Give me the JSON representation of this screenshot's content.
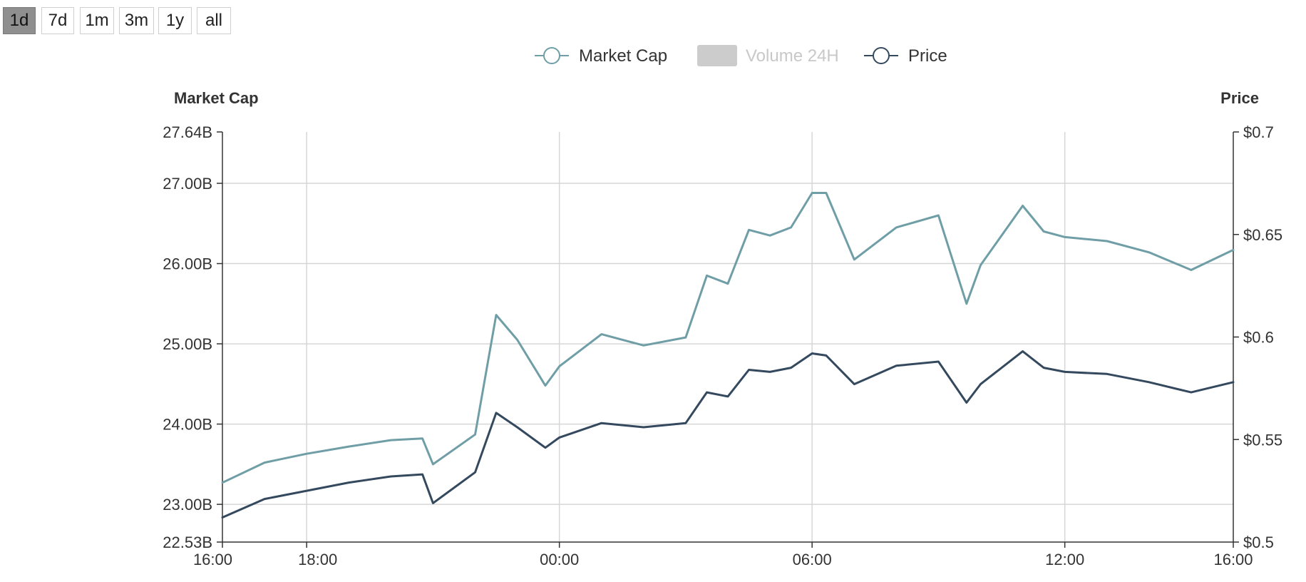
{
  "range_buttons": {
    "active": "1d",
    "labels": [
      "1d",
      "7d",
      "1m",
      "3m",
      "1y",
      "all"
    ]
  },
  "colors": {
    "market_cap": "#6f9ea6",
    "price": "#34495e",
    "volume_disabled": "#cccccc",
    "grid": "#d6d6d6",
    "axis": "#333333"
  },
  "chart_data": {
    "type": "line",
    "legend": {
      "placement": "top-center",
      "entries": [
        {
          "name": "Market Cap",
          "enabled": true
        },
        {
          "name": "Volume 24H",
          "enabled": false
        },
        {
          "name": "Price",
          "enabled": true
        }
      ]
    },
    "y_left": {
      "title": "Market Cap",
      "range": [
        22.53,
        27.64
      ],
      "ticks": [
        {
          "value": 27.64,
          "label": "27.64B"
        },
        {
          "value": 27.0,
          "label": "27.00B"
        },
        {
          "value": 26.0,
          "label": "26.00B"
        },
        {
          "value": 25.0,
          "label": "25.00B"
        },
        {
          "value": 24.0,
          "label": "24.00B"
        },
        {
          "value": 23.0,
          "label": "23.00B"
        },
        {
          "value": 22.53,
          "label": "22.53B"
        }
      ]
    },
    "y_right": {
      "title": "Price",
      "range": [
        0.5,
        0.7
      ],
      "ticks": [
        {
          "value": 0.7,
          "label": "$0.7"
        },
        {
          "value": 0.65,
          "label": "$0.65"
        },
        {
          "value": 0.6,
          "label": "$0.6"
        },
        {
          "value": 0.55,
          "label": "$0.55"
        },
        {
          "value": 0.5,
          "label": "$0.5"
        }
      ]
    },
    "x_axis": {
      "ticks": [
        "16:00",
        "18:00",
        "00:00",
        "06:00",
        "12:00",
        "16:00"
      ]
    },
    "grid": true,
    "series": [
      {
        "name": "Market Cap",
        "axis": "left",
        "x": [
          "16:00",
          "17:00",
          "18:00",
          "19:00",
          "20:00",
          "20:45",
          "21:00",
          "22:00",
          "22:30",
          "23:00",
          "23:40",
          "00:00",
          "01:00",
          "02:00",
          "03:00",
          "03:30",
          "04:00",
          "04:30",
          "05:00",
          "05:30",
          "06:00",
          "06:20",
          "07:00",
          "08:00",
          "09:00",
          "09:40",
          "10:00",
          "11:00",
          "11:30",
          "12:00",
          "13:00",
          "14:00",
          "15:00",
          "16:00"
        ],
        "values": [
          23.27,
          23.52,
          23.63,
          23.72,
          23.8,
          23.82,
          23.5,
          23.87,
          25.36,
          25.05,
          24.48,
          24.72,
          25.12,
          24.98,
          25.08,
          25.85,
          25.75,
          26.42,
          26.35,
          26.45,
          26.88,
          26.88,
          26.05,
          26.45,
          26.6,
          25.5,
          25.98,
          26.72,
          26.4,
          26.33,
          26.28,
          26.14,
          25.92,
          26.17
        ]
      },
      {
        "name": "Price",
        "axis": "right",
        "x": [
          "16:00",
          "17:00",
          "18:00",
          "19:00",
          "20:00",
          "20:45",
          "21:00",
          "22:00",
          "22:30",
          "23:00",
          "23:40",
          "00:00",
          "01:00",
          "02:00",
          "03:00",
          "03:30",
          "04:00",
          "04:30",
          "05:00",
          "05:30",
          "06:00",
          "06:20",
          "07:00",
          "08:00",
          "09:00",
          "09:40",
          "10:00",
          "11:00",
          "11:30",
          "12:00",
          "13:00",
          "14:00",
          "15:00",
          "16:00"
        ],
        "values": [
          0.512,
          0.521,
          0.525,
          0.529,
          0.532,
          0.533,
          0.519,
          0.534,
          0.563,
          0.556,
          0.546,
          0.551,
          0.558,
          0.556,
          0.558,
          0.573,
          0.571,
          0.584,
          0.583,
          0.585,
          0.592,
          0.591,
          0.577,
          0.586,
          0.588,
          0.568,
          0.577,
          0.593,
          0.585,
          0.583,
          0.582,
          0.578,
          0.573,
          0.578
        ]
      }
    ]
  }
}
